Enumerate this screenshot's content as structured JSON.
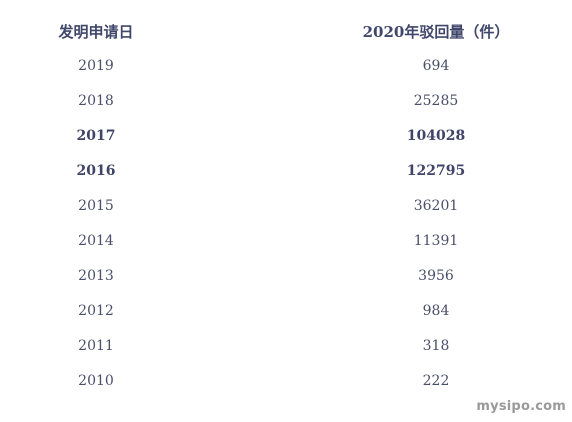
{
  "table": {
    "headers": [
      "发明申请日",
      "2020年驳回量（件）"
    ],
    "rows": [
      {
        "year": "2019",
        "count": "694",
        "bold": false
      },
      {
        "year": "2018",
        "count": "25285",
        "bold": false
      },
      {
        "year": "2017",
        "count": "104028",
        "bold": true
      },
      {
        "year": "2016",
        "count": "122795",
        "bold": true
      },
      {
        "year": "2015",
        "count": "36201",
        "bold": false
      },
      {
        "year": "2014",
        "count": "11391",
        "bold": false
      },
      {
        "year": "2013",
        "count": "3956",
        "bold": false
      },
      {
        "year": "2012",
        "count": "984",
        "bold": false
      },
      {
        "year": "2011",
        "count": "318",
        "bold": false
      },
      {
        "year": "2010",
        "count": "222",
        "bold": false
      }
    ]
  },
  "watermark": "mysipo.com"
}
